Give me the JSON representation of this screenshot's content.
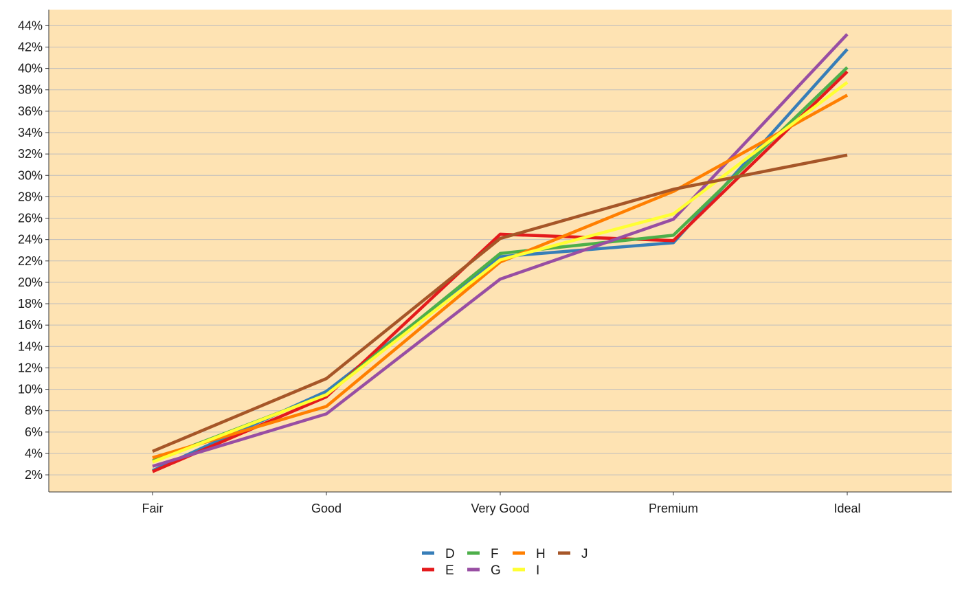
{
  "chart_data": {
    "type": "line",
    "title": "",
    "xlabel": "",
    "ylabel": "",
    "categories": [
      "Fair",
      "Good",
      "Very Good",
      "Premium",
      "Ideal"
    ],
    "y_ticks": [
      "2%",
      "4%",
      "6%",
      "8%",
      "10%",
      "12%",
      "14%",
      "16%",
      "18%",
      "20%",
      "22%",
      "24%",
      "26%",
      "28%",
      "30%",
      "32%",
      "34%",
      "36%",
      "38%",
      "40%",
      "42%",
      "44%"
    ],
    "y_unit": "percent",
    "ylim": [
      0.4,
      45.5
    ],
    "grid": "horizontal",
    "legend_position": "bottom",
    "background_color": "#FEE3B3",
    "gridline_color": "#BEBEBE",
    "series": [
      {
        "name": "D",
        "color": "#377EB8",
        "values": [
          2.4,
          9.8,
          22.4,
          23.7,
          41.8
        ]
      },
      {
        "name": "E",
        "color": "#E41A1C",
        "values": [
          2.3,
          9.3,
          24.5,
          23.9,
          39.7
        ]
      },
      {
        "name": "F",
        "color": "#4DAF4A",
        "values": [
          3.3,
          9.5,
          22.7,
          24.4,
          40.1
        ]
      },
      {
        "name": "G",
        "color": "#984EA3",
        "values": [
          2.8,
          7.7,
          20.3,
          25.9,
          43.2
        ]
      },
      {
        "name": "H",
        "color": "#FF7F00",
        "values": [
          3.6,
          8.4,
          21.9,
          28.5,
          37.5
        ]
      },
      {
        "name": "I",
        "color": "#FFFF33",
        "values": [
          3.2,
          9.5,
          22.1,
          26.4,
          38.7
        ]
      },
      {
        "name": "J",
        "color": "#A65628",
        "values": [
          4.2,
          11.0,
          24.1,
          28.7,
          31.9
        ]
      }
    ]
  }
}
